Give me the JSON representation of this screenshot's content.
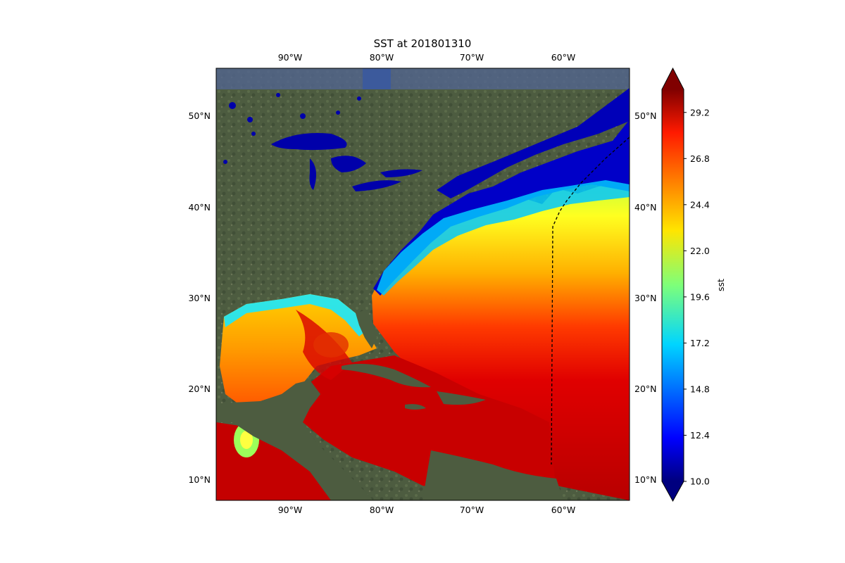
{
  "title": "SST at 201801310",
  "lon_ticks": [
    "90°W",
    "80°W",
    "70°W",
    "60°W"
  ],
  "lat_ticks": [
    "50°N",
    "40°N",
    "30°N",
    "20°N",
    "10°N"
  ],
  "colorbar": {
    "label": "sst",
    "min": 10.0,
    "max": 30.4,
    "ticks": [
      "29.2",
      "26.8",
      "24.4",
      "22.0",
      "19.6",
      "17.2",
      "14.8",
      "12.4",
      "10.0"
    ],
    "extend": "both",
    "colormap": "jet"
  },
  "map": {
    "projection": "PlateCarree",
    "lon_range": [
      -98,
      -53
    ],
    "lat_range": [
      8,
      55.5
    ],
    "background": "satellite imagery",
    "region": "Gulf of Mexico, Caribbean Sea and western North Atlantic",
    "boundary_line": "dashed black"
  },
  "colors": {
    "land": "#4b5a3e",
    "ocean_cold": "#00009a",
    "ocean_warm": "#c00000",
    "frame": "#000000"
  }
}
